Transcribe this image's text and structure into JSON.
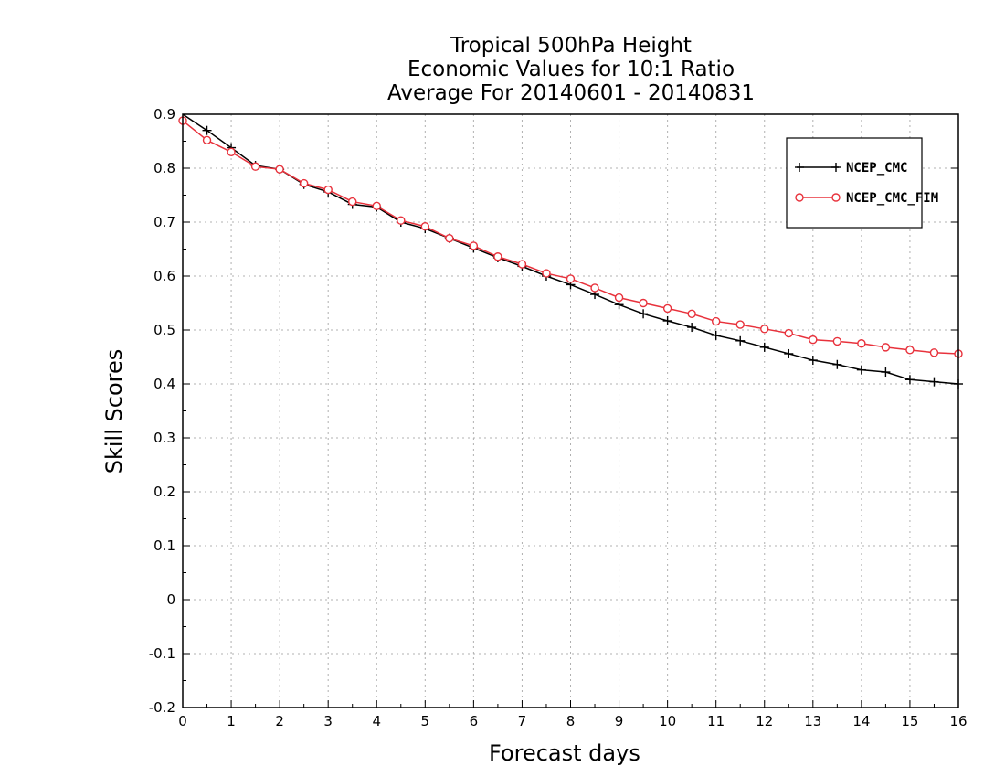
{
  "chart_data": {
    "type": "line",
    "title": [
      "Tropical 500hPa Height",
      "Economic Values for 10:1 Ratio",
      "Average For 20140601 - 20140831"
    ],
    "xlabel": "Forecast days",
    "ylabel": "Skill Scores",
    "xlim": [
      0,
      16
    ],
    "ylim": [
      -0.2,
      0.9
    ],
    "xticks": [
      "0",
      "1",
      "2",
      "3",
      "4",
      "5",
      "6",
      "7",
      "8",
      "9",
      "10",
      "11",
      "12",
      "13",
      "14",
      "15",
      "16"
    ],
    "yticks": [
      "0.9",
      "0.8",
      "0.7",
      "0.6",
      "0.5",
      "0.4",
      "0.3",
      "0.2",
      "0.1",
      "0",
      "-0.1",
      "-0.2"
    ],
    "grid": true,
    "legend_position": "top-right",
    "x": [
      0,
      0.5,
      1,
      1.5,
      2,
      2.5,
      3,
      3.5,
      4,
      4.5,
      5,
      5.5,
      6,
      6.5,
      7,
      7.5,
      8,
      8.5,
      9,
      9.5,
      10,
      10.5,
      11,
      11.5,
      12,
      12.5,
      13,
      13.5,
      14,
      14.5,
      15,
      15.5,
      16
    ],
    "series": [
      {
        "name": "NCEP_CMC",
        "color": "#000000",
        "marker": "plus",
        "values": [
          0.91,
          0.87,
          0.838,
          0.805,
          0.798,
          0.77,
          0.756,
          0.733,
          0.728,
          0.7,
          0.688,
          0.67,
          0.652,
          0.634,
          0.618,
          0.6,
          0.584,
          0.566,
          0.547,
          0.53,
          0.517,
          0.505,
          0.49,
          0.48,
          0.468,
          0.456,
          0.444,
          0.436,
          0.426,
          0.422,
          0.408,
          0.404,
          0.4
        ]
      },
      {
        "name": "NCEP_CMC_FIM",
        "color": "#e8323c",
        "marker": "circle",
        "values": [
          0.888,
          0.852,
          0.83,
          0.803,
          0.798,
          0.772,
          0.76,
          0.738,
          0.73,
          0.703,
          0.692,
          0.67,
          0.656,
          0.636,
          0.622,
          0.605,
          0.595,
          0.578,
          0.56,
          0.55,
          0.54,
          0.53,
          0.516,
          0.51,
          0.502,
          0.494,
          0.482,
          0.479,
          0.475,
          0.468,
          0.463,
          0.458,
          0.456
        ]
      }
    ]
  }
}
